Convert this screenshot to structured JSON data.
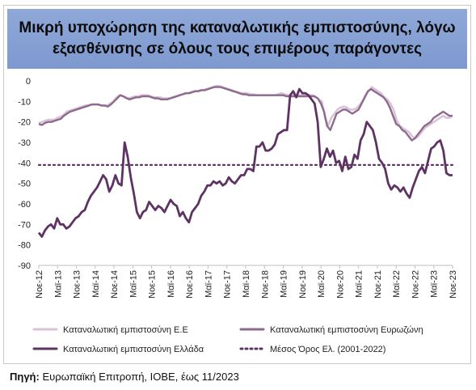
{
  "title_line1": "Μικρή υποχώρηση της καταναλωτικής εμπιστοσύνης, λόγω",
  "title_line2": "εξασθένισης σε όλους τους επιμέρους παράγοντες",
  "source_label": "Πηγή:",
  "source_text": " Ευρωπαϊκή Επιτροπή, ΙΟΒΕ, έως 11/2023",
  "colors": {
    "eu": "#d8c4d6",
    "eurozone": "#8e6a8e",
    "greece": "#5e3364",
    "average": "#5e3364"
  },
  "chart_data": {
    "type": "line",
    "ylim": [
      -90,
      0
    ],
    "yticks": [
      0,
      -10,
      -20,
      -30,
      -40,
      -50,
      -60,
      -70,
      -80,
      -90
    ],
    "xticks": [
      "Νοε-12",
      "Μαϊ-13",
      "Νοε-13",
      "Μαϊ-14",
      "Νοε-14",
      "Μαϊ-15",
      "Νοε-15",
      "Μαϊ-16",
      "Νοε-16",
      "Μαϊ-17",
      "Νοε-17",
      "Μαϊ-18",
      "Νοε-18",
      "Μαϊ-19",
      "Νοε-19",
      "Μαϊ-20",
      "Νοε-20",
      "Μαϊ-21",
      "Νοε-21",
      "Μαϊ-22",
      "Νοε-22",
      "Μαϊ-23",
      "Νοε-23"
    ],
    "x_start": "Νοε-12",
    "x_end": "Νοε-23",
    "series": [
      {
        "name": "Καταναλωτική εμπιστοσύνη Ε.Ε",
        "key": "eu",
        "values": [
          -20.5,
          -20,
          -19.5,
          -19,
          -19,
          -19,
          -18,
          -17.5,
          -16.5,
          -15,
          -14.5,
          -14,
          -13.5,
          -13,
          -12.5,
          -12,
          -11.8,
          -11.5,
          -11.5,
          -11.5,
          -12,
          -12,
          -12,
          -11,
          -10,
          -8,
          -7,
          -7.5,
          -8,
          -8.5,
          -8,
          -7.5,
          -7.5,
          -7,
          -7,
          -7,
          -7.5,
          -8,
          -8,
          -8,
          -8.5,
          -8.5,
          -8.5,
          -8,
          -7.5,
          -7,
          -6.5,
          -6,
          -6,
          -5.5,
          -5,
          -5,
          -4.5,
          -4.5,
          -4,
          -3.5,
          -3,
          -2.5,
          -2.5,
          -3,
          -3.5,
          -4,
          -4.5,
          -5,
          -5.5,
          -6,
          -6,
          -6,
          -6.5,
          -6.5,
          -7,
          -7,
          -7,
          -7,
          -7,
          -7,
          -7,
          -6.5,
          -6,
          -6.5,
          -7,
          -7,
          -7,
          -7,
          -7,
          -7,
          -7,
          -7,
          -7,
          -8,
          -9,
          -10,
          -18,
          -22,
          -18,
          -16,
          -14,
          -13,
          -12.5,
          -13,
          -14,
          -14,
          -13.5,
          -12,
          -10,
          -7,
          -5,
          -3,
          -4,
          -5,
          -6,
          -8,
          -9,
          -11,
          -14,
          -19,
          -22,
          -23,
          -24,
          -25,
          -27,
          -28,
          -27,
          -25,
          -23,
          -22,
          -21,
          -20,
          -19,
          -18,
          -17,
          -18,
          -18,
          -17
        ],
        "values_note": "monthly Nov-2012..Nov-2023"
      },
      {
        "name": "Καταναλωτική εμπιστοσύνη Ευρωζώνη",
        "key": "eurozone",
        "values": [
          -21,
          -21.5,
          -20.5,
          -20,
          -20,
          -19.5,
          -19,
          -18.5,
          -17,
          -16,
          -15,
          -14.5,
          -14,
          -13.5,
          -13,
          -12.5,
          -12,
          -11.5,
          -11.5,
          -11.5,
          -12,
          -12,
          -12.5,
          -11.5,
          -10,
          -8.5,
          -7,
          -7.5,
          -8.5,
          -9,
          -8.5,
          -8,
          -8,
          -7.5,
          -7.5,
          -7.5,
          -8,
          -8.5,
          -8.5,
          -9,
          -9,
          -9,
          -8.5,
          -8,
          -7.5,
          -7,
          -6.5,
          -6,
          -6,
          -5.5,
          -5,
          -5,
          -4.5,
          -4.5,
          -4,
          -3.5,
          -3,
          -3,
          -3,
          -3.5,
          -4,
          -4.5,
          -5,
          -5.5,
          -6,
          -6.5,
          -6.5,
          -7,
          -7,
          -7,
          -7,
          -7,
          -7,
          -7,
          -7,
          -7,
          -7,
          -7,
          -7,
          -7.5,
          -7.5,
          -7.5,
          -7.5,
          -7.5,
          -7.5,
          -7.5,
          -7.5,
          -7.5,
          -7.5,
          -8.5,
          -11,
          -15,
          -22,
          -24,
          -20,
          -16,
          -15,
          -14,
          -14,
          -15,
          -16,
          -15,
          -14,
          -11,
          -8,
          -5,
          -4,
          -5,
          -6,
          -7,
          -8,
          -10,
          -13,
          -17,
          -21,
          -22,
          -24,
          -25,
          -27,
          -29,
          -28,
          -26,
          -24,
          -22,
          -21,
          -20,
          -18,
          -17,
          -16,
          -15,
          -16,
          -17,
          -17
        ]
      },
      {
        "name": "Καταναλωτική εμπιστοσύνη Ελλάδα",
        "key": "greece",
        "values": [
          -74,
          -76,
          -73,
          -71,
          -70,
          -72,
          -67,
          -70,
          -70,
          -72,
          -71,
          -69,
          -67,
          -66,
          -64,
          -63,
          -59,
          -56,
          -54,
          -52,
          -49,
          -46,
          -48,
          -54,
          -51,
          -46,
          -50,
          -51,
          -30,
          -37,
          -47,
          -55,
          -64,
          -67,
          -64,
          -63,
          -59,
          -61,
          -63,
          -61,
          -62,
          -64,
          -61,
          -58,
          -60,
          -61,
          -66,
          -64,
          -67,
          -69,
          -64,
          -62,
          -60,
          -56,
          -54,
          -51,
          -51,
          -49,
          -50,
          -49,
          -51,
          -50,
          -47,
          -49,
          -50,
          -48,
          -46,
          -46,
          -43,
          -43,
          -44,
          -32,
          -32,
          -30,
          -34,
          -34,
          -33,
          -31,
          -26,
          -25,
          -24,
          -24,
          -7,
          -5,
          -8,
          -4,
          -6,
          -6,
          -7,
          -9,
          -11,
          -20,
          -42,
          -38,
          -33,
          -37,
          -34,
          -40,
          -39,
          -44,
          -37,
          -43,
          -42,
          -36,
          -38,
          -29,
          -26,
          -20,
          -22,
          -24,
          -30,
          -38,
          -40,
          -43,
          -50,
          -53,
          -51,
          -52,
          -54,
          -52,
          -55,
          -57,
          -52,
          -48,
          -44,
          -42,
          -45,
          -39,
          -33,
          -32,
          -30,
          -29,
          -34,
          -45,
          -46,
          -46
        ]
      },
      {
        "name": "Μέσος Όρος Ελ. (2001-2022)",
        "key": "average",
        "value": -41
      }
    ],
    "legend_position": "bottom"
  }
}
